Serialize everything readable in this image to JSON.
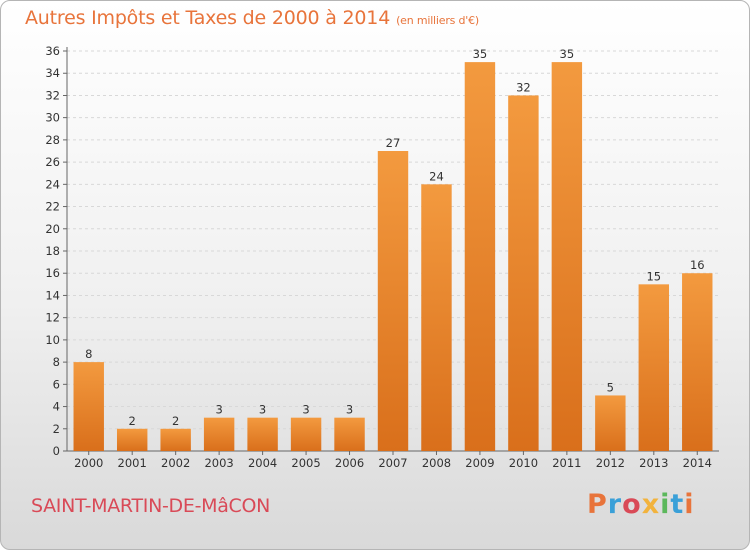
{
  "chart_data": {
    "type": "bar",
    "title": "Autres Impôts et Taxes de 2000 à 2014",
    "unit_label": "(en milliers d'€)",
    "categories": [
      "2000",
      "2001",
      "2002",
      "2003",
      "2004",
      "2005",
      "2006",
      "2007",
      "2008",
      "2009",
      "2010",
      "2011",
      "2012",
      "2013",
      "2014"
    ],
    "values": [
      8,
      2,
      2,
      3,
      3,
      3,
      3,
      27,
      24,
      35,
      32,
      35,
      5,
      15,
      16
    ],
    "ylim": [
      0,
      36
    ],
    "yticks": [
      "0",
      "2",
      "4",
      "6",
      "8",
      "10",
      "12",
      "14",
      "16",
      "18",
      "20",
      "22",
      "24",
      "26",
      "28",
      "30",
      "32",
      "34",
      "36"
    ],
    "grid": true,
    "bar_color": "#f39a3f",
    "bar_color_dark": "#d96f1b"
  },
  "footer": {
    "city": "SAINT-MARTIN-DE-MâCON",
    "logo_text": "Proxiti",
    "logo_colors": [
      "#e8743b",
      "#3aa0d8",
      "#d94a57",
      "#f2b33d",
      "#5cb85c",
      "#3aa0d8",
      "#e8743b"
    ]
  }
}
